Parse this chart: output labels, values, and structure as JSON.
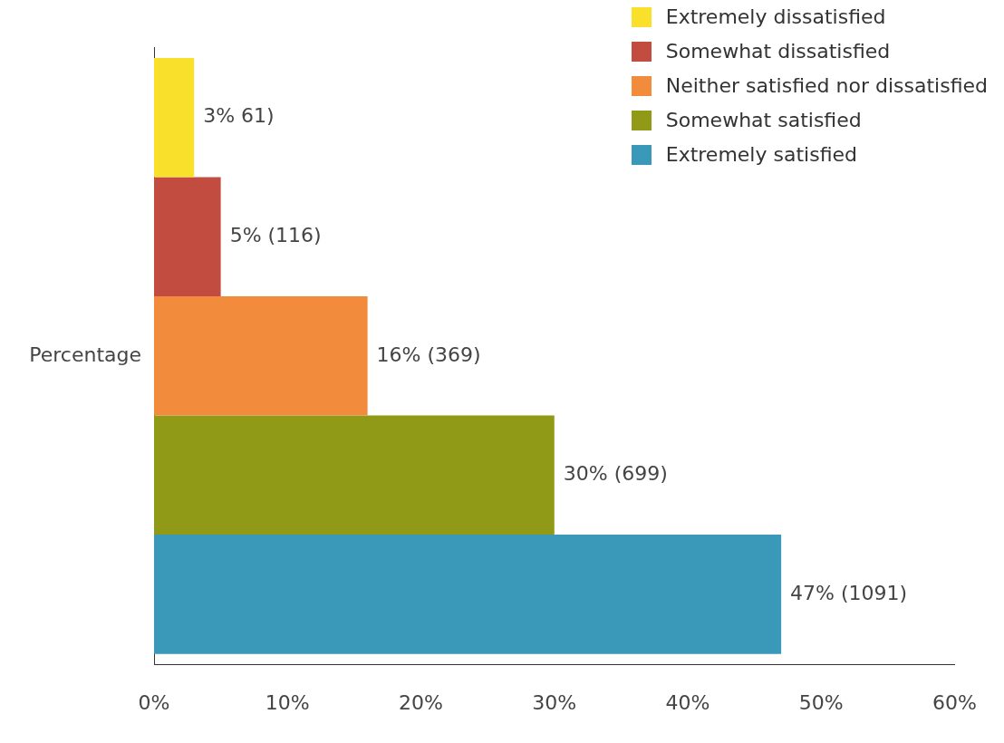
{
  "chart_data": {
    "type": "bar",
    "orientation": "horizontal",
    "categories": [
      null
    ],
    "ylabel": "Percentage",
    "series": [
      {
        "name": "Extremely dissatisfied",
        "color": "#f9e02a",
        "values": [
          3
        ],
        "value_labels": [
          "3% 61)"
        ]
      },
      {
        "name": "Somewhat dissatisfied",
        "color": "#c24c3f",
        "values": [
          5
        ],
        "value_labels": [
          "5% (116)"
        ]
      },
      {
        "name": "Neither satisfied nor dissatisfied",
        "color": "#f28c3c",
        "values": [
          16
        ],
        "value_labels": [
          "16% (369)"
        ]
      },
      {
        "name": "Somewhat satisfied",
        "color": "#919a16",
        "values": [
          30
        ],
        "value_labels": [
          "30% (699)"
        ]
      },
      {
        "name": "Extremely satisfied",
        "color": "#3a98b8",
        "values": [
          47
        ],
        "value_labels": [
          "47% (1091)"
        ]
      }
    ],
    "xlim": [
      0,
      60
    ],
    "xticks": [
      {
        "value": 0,
        "label": "0%"
      },
      {
        "value": 10,
        "label": "10%"
      },
      {
        "value": 20,
        "label": "20%"
      },
      {
        "value": 30,
        "label": "30%"
      },
      {
        "value": 40,
        "label": "40%"
      },
      {
        "value": 50,
        "label": "50%"
      },
      {
        "value": 60,
        "label": "60%"
      }
    ],
    "grid": false,
    "legend": "top right"
  }
}
